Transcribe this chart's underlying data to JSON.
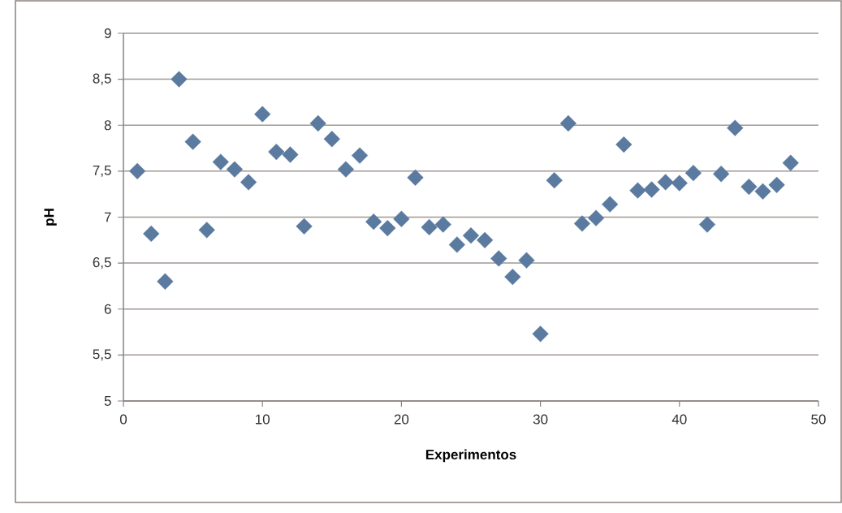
{
  "chart_data": {
    "type": "scatter",
    "xlabel": "Experimentos",
    "ylabel": "pH",
    "x": [
      1,
      2,
      3,
      4,
      5,
      6,
      7,
      8,
      9,
      10,
      11,
      12,
      13,
      14,
      15,
      16,
      17,
      18,
      19,
      20,
      21,
      22,
      23,
      24,
      25,
      26,
      27,
      28,
      29,
      30,
      31,
      32,
      33,
      34,
      35,
      36,
      37,
      38,
      39,
      40,
      41,
      42,
      43,
      44,
      45,
      46,
      47,
      48
    ],
    "values": [
      7.5,
      6.82,
      6.3,
      8.5,
      7.82,
      6.86,
      7.6,
      7.52,
      7.38,
      8.12,
      7.71,
      7.68,
      6.9,
      8.02,
      7.85,
      7.52,
      7.67,
      6.95,
      6.88,
      6.98,
      7.43,
      6.89,
      6.92,
      6.7,
      6.8,
      6.75,
      6.55,
      6.35,
      6.53,
      5.73,
      7.4,
      8.02,
      6.93,
      6.99,
      7.14,
      7.79,
      7.29,
      7.3,
      7.38,
      7.37,
      7.48,
      6.92,
      7.47,
      7.97,
      7.33,
      7.28,
      7.35,
      7.59
    ],
    "color": "#5a7aa0",
    "marker": "diamond",
    "grid": "y",
    "xlim": [
      0,
      50
    ],
    "xticks": [
      0,
      10,
      20,
      30,
      40,
      50
    ],
    "ylim": [
      5,
      9
    ],
    "yticks": [
      {
        "value": 5,
        "label": "5"
      },
      {
        "value": 5.5,
        "label": "5,5"
      },
      {
        "value": 6,
        "label": "6"
      },
      {
        "value": 6.5,
        "label": "6,5"
      },
      {
        "value": 7,
        "label": "7"
      },
      {
        "value": 7.5,
        "label": "7,5"
      },
      {
        "value": 8,
        "label": "8"
      },
      {
        "value": 8.5,
        "label": "8,5"
      },
      {
        "value": 9,
        "label": "9"
      }
    ]
  }
}
